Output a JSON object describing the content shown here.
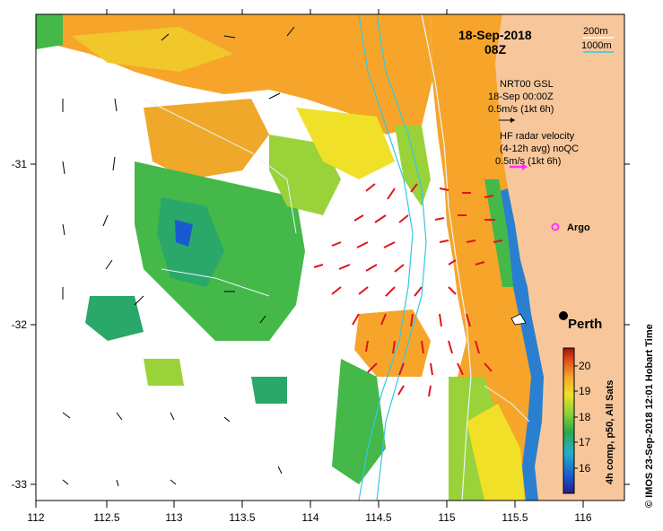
{
  "map": {
    "date": "18-Sep-2018",
    "time": "08Z",
    "depth_contours": [
      "200m",
      "1000m"
    ],
    "nrt_label": "NRT00 GSL",
    "nrt_date": "18-Sep 00:00Z",
    "nrt_scale": "0.5m/s (1kt 6h)",
    "hf_title": "HF radar velocity",
    "hf_sub": "(4-12h avg) noQC",
    "hf_scale": "0.5m/s (1kt 6h)",
    "argo_label": "Argo",
    "city_label": "Perth",
    "colorbar_label": "4h comp, p50, All Sats",
    "colorbar_ticks": [
      "20",
      "19",
      "18",
      "17",
      "16"
    ],
    "side_caption": "© IMOS 23-Sep-2018 12:01 Hobart Time",
    "x_ticks": [
      "112",
      "112.5",
      "113",
      "113.5",
      "114",
      "114.5",
      "115",
      "115.5",
      "116"
    ],
    "y_ticks": [
      "-31",
      "-32",
      "-33"
    ],
    "colors": {
      "land": "#f7c79b",
      "coastal_blue": "#2a7fd0",
      "green": "#45b84a",
      "orange": "#f7a52a",
      "hf_arrow": "#e0141e",
      "argo": "#ff33ff",
      "contour_cyan": "#33c8e6"
    }
  }
}
